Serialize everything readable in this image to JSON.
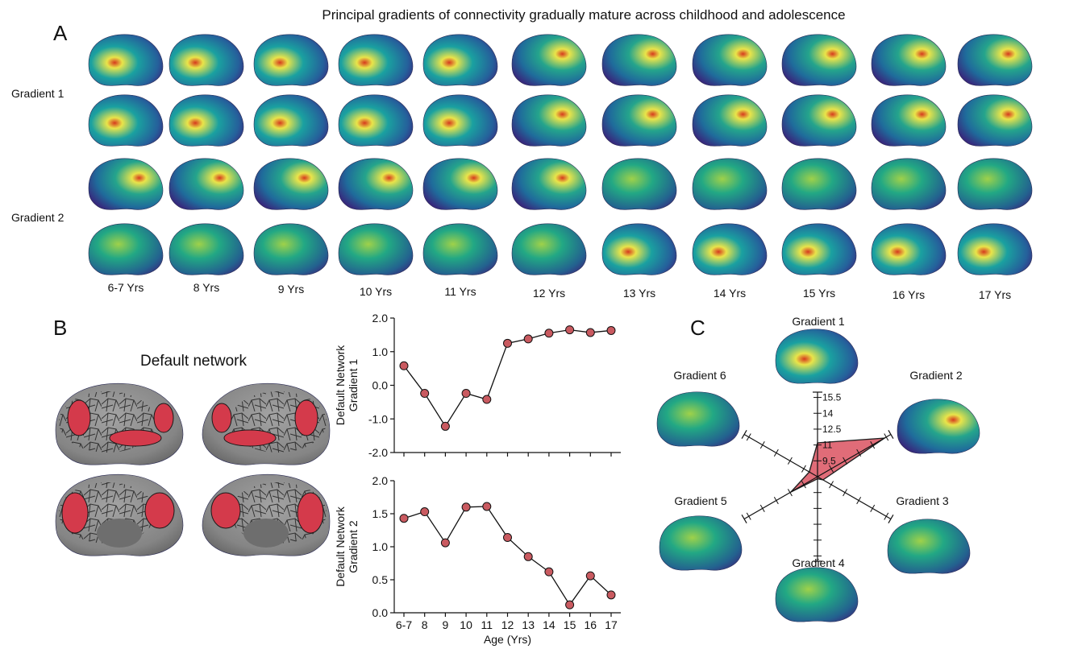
{
  "figure": {
    "title": "Principal gradients of connectivity gradually mature across childhood and adolescence",
    "panel_labels": [
      "A",
      "B",
      "C"
    ],
    "colors": {
      "accent_default_network": "#d43a4b",
      "surface_gray": "#8b8b8b",
      "marker_fill": "#c95a60",
      "radar_fill": "#e06c78",
      "radar_edge": "#222222",
      "cmap_low": "#3b1f78",
      "cmap_mid": "#1aa1a0",
      "cmap_high": "#e9e44a",
      "cmap_peak": "#d63a1e"
    }
  },
  "panelA": {
    "row_labels": [
      "Gradient 1",
      "Gradient 2"
    ],
    "age_labels": [
      "6-7 Yrs",
      "8 Yrs",
      "9 Yrs",
      "10 Yrs",
      "11 Yrs",
      "12 Yrs",
      "13 Yrs",
      "14 Yrs",
      "15 Yrs",
      "16 Yrs",
      "17 Yrs"
    ],
    "brain_icon": "brain-surface-icon"
  },
  "panelB": {
    "network_title": "Default network",
    "brain_icon": "parcellated-brain-icon"
  },
  "panelC": {
    "gradient_labels": [
      "Gradient 1",
      "Gradient 2",
      "Gradient 3",
      "Gradient 4",
      "Gradient 5",
      "Gradient 6"
    ],
    "axis_tick_labels": [
      "9.5",
      "11",
      "12.5",
      "14",
      "15.5"
    ],
    "brain_icon": "brain-surface-icon"
  },
  "chart_data": [
    {
      "type": "line",
      "x": [
        "6-7",
        "8",
        "9",
        "10",
        "11",
        "12",
        "13",
        "14",
        "15",
        "16",
        "17"
      ],
      "values": [
        0.58,
        -0.24,
        -1.22,
        -0.24,
        -0.42,
        1.25,
        1.38,
        1.55,
        1.65,
        1.57,
        1.63
      ],
      "ylabel": "Default Network\nGradient 1",
      "ylabel_lines": [
        "Default Network",
        "Gradient 1"
      ],
      "ylim": [
        -2.0,
        2.0
      ],
      "yticks": [
        "2.0",
        "1.0",
        "0.0",
        "-1.0",
        "-2.0"
      ],
      "ytick_values": [
        2.0,
        1.0,
        0.0,
        -1.0,
        -2.0
      ],
      "marker": "circle",
      "grid": false
    },
    {
      "type": "line",
      "x": [
        "6-7",
        "8",
        "9",
        "10",
        "11",
        "12",
        "13",
        "14",
        "15",
        "16",
        "17"
      ],
      "values": [
        1.43,
        1.53,
        1.06,
        1.6,
        1.61,
        1.14,
        0.85,
        0.62,
        0.12,
        0.56,
        0.27
      ],
      "ylabel": "Default Network\nGradient 2",
      "ylabel_lines": [
        "Default Network",
        "Gradient 2"
      ],
      "xlabel": "Age (Yrs)",
      "ylim": [
        0.0,
        2.0
      ],
      "yticks": [
        "2.0",
        "1.5",
        "1.0",
        "0.5",
        "0.0"
      ],
      "ytick_values": [
        2.0,
        1.5,
        1.0,
        0.5,
        0.0
      ],
      "marker": "circle",
      "grid": false
    },
    {
      "type": "radar",
      "categories": [
        "Gradient 1",
        "Gradient 2",
        "Gradient 3",
        "Gradient 4",
        "Gradient 5",
        "Gradient 6"
      ],
      "values": [
        11.2,
        15.3,
        8.6,
        8.2,
        10.9,
        8.9
      ],
      "axis_min": 8.0,
      "axis_max": 16.0,
      "ticks": [
        9.5,
        11,
        12.5,
        14,
        15.5
      ],
      "grid": false
    }
  ]
}
